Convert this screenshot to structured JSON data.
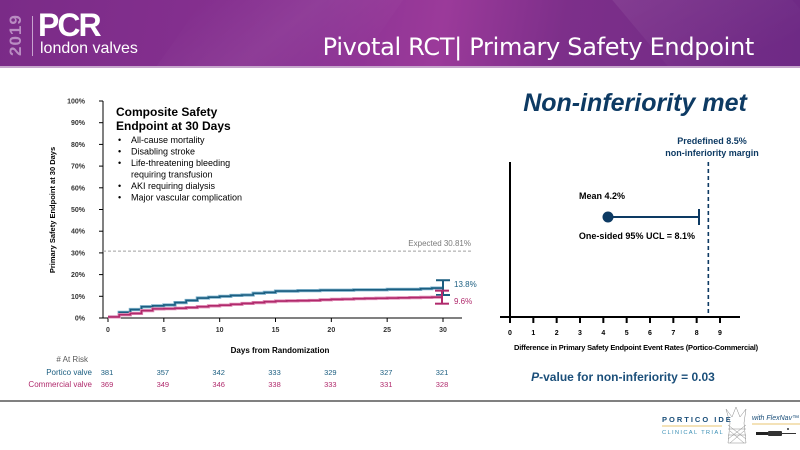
{
  "header": {
    "year": "2019",
    "brand": "PCR",
    "brand_sub": "london valves",
    "title": "Pivotal RCT| Primary Safety Endpoint"
  },
  "footer": {
    "logo_line1": "PORTICO IDE",
    "logo_line2": "CLINICAL TRIAL",
    "logo_with": "with FlexNav™"
  },
  "colors": {
    "portico": "#1b5e80",
    "commercial": "#b02a6c",
    "accent_navy": "#0d3a63",
    "header_purple": "#7a2b87"
  },
  "chart_data": [
    {
      "type": "line",
      "subtype": "kaplan-meier",
      "title": "Composite Safety Endpoint at 30 Days",
      "title_lines": [
        "Composite  Safety",
        "Endpoint  at 30 Days"
      ],
      "components": [
        "All-cause mortality",
        "Disabling stroke",
        "Life-threatening bleeding",
        "requiring transfusion",
        "AKI requiring dialysis",
        "Major vascular complication"
      ],
      "component_bullets": [
        true,
        true,
        true,
        false,
        true,
        true
      ],
      "xlabel": "Days from Randomization",
      "ylabel": "Primary Safety Endpoint at 30 Days",
      "xlim": [
        0,
        30
      ],
      "ylim": [
        0,
        100
      ],
      "x_ticks": [
        0,
        5,
        10,
        15,
        20,
        25,
        30
      ],
      "y_ticks": [
        0,
        10,
        20,
        30,
        40,
        50,
        60,
        70,
        80,
        90,
        100
      ],
      "y_tick_labels": [
        "0%",
        "10%",
        "20%",
        "30%",
        "40%",
        "50%",
        "60%",
        "70%",
        "80%",
        "90%",
        "100%"
      ],
      "reference_line": {
        "y": 30.81,
        "label": "Expected 30.81%"
      },
      "series": [
        {
          "name": "Portico valve",
          "color": "#1b5e80",
          "x": [
            0,
            1,
            2,
            3,
            4,
            5,
            6,
            7,
            8,
            9,
            10,
            11,
            12,
            13,
            14,
            15,
            16,
            17,
            18,
            19,
            20,
            21,
            22,
            23,
            24,
            25,
            26,
            27,
            28,
            29,
            30
          ],
          "y": [
            0.5,
            2.6,
            3.9,
            5.2,
            5.6,
            6.0,
            7.1,
            8.1,
            9.2,
            9.6,
            10.0,
            10.4,
            10.6,
            11.4,
            11.8,
            12.4,
            12.4,
            12.6,
            12.6,
            12.8,
            12.8,
            12.8,
            13.0,
            13.0,
            13.0,
            13.2,
            13.2,
            13.2,
            13.5,
            13.8,
            13.8
          ],
          "final_label": "13.8%",
          "ci_30": [
            10.6,
            17.4
          ]
        },
        {
          "name": "Commercial valve",
          "color": "#b02a6c",
          "x": [
            0,
            1,
            2,
            3,
            4,
            5,
            6,
            7,
            8,
            9,
            10,
            11,
            12,
            13,
            14,
            15,
            16,
            17,
            18,
            19,
            20,
            21,
            22,
            23,
            24,
            25,
            26,
            27,
            28,
            29,
            30
          ],
          "y": [
            0.5,
            1.5,
            2.1,
            3.4,
            4.2,
            4.3,
            4.5,
            4.8,
            5.2,
            5.6,
            5.9,
            6.3,
            6.7,
            7.1,
            7.5,
            7.8,
            7.9,
            8.0,
            8.1,
            8.4,
            8.6,
            8.7,
            8.9,
            9.0,
            9.1,
            9.2,
            9.3,
            9.4,
            9.5,
            9.6,
            9.6
          ],
          "final_label": "9.6%",
          "ci_30": [
            6.6,
            12.6
          ]
        }
      ],
      "at_risk": {
        "label": "# At Risk",
        "days": [
          0,
          5,
          10,
          15,
          20,
          25,
          30
        ],
        "rows": [
          {
            "name": "Portico valve",
            "values": [
              381,
              357,
              342,
              333,
              329,
              327,
              321
            ]
          },
          {
            "name": "Commercial valve",
            "values": [
              369,
              349,
              346,
              338,
              333,
              331,
              328
            ]
          }
        ]
      }
    },
    {
      "type": "scatter",
      "subtype": "non-inferiority-forest",
      "title": "Non-inferiority met",
      "xlabel": "Difference in Primary Safety Endpoint Event Rates (Portico-Commercial)",
      "xlim": [
        0,
        9
      ],
      "x_ticks": [
        0,
        1,
        2,
        3,
        4,
        5,
        6,
        7,
        8,
        9
      ],
      "mean": 4.2,
      "mean_label": "Mean 4.2%",
      "ucl": 8.1,
      "ucl_label": "One-sided 95% UCL = 8.1%",
      "margin": 8.5,
      "margin_label_lines": [
        "Predefined 8.5%",
        "non-inferiority margin"
      ],
      "p_value_prefix": "P",
      "p_value_text": "-value  for non-inferiority  = 0.03"
    }
  ]
}
